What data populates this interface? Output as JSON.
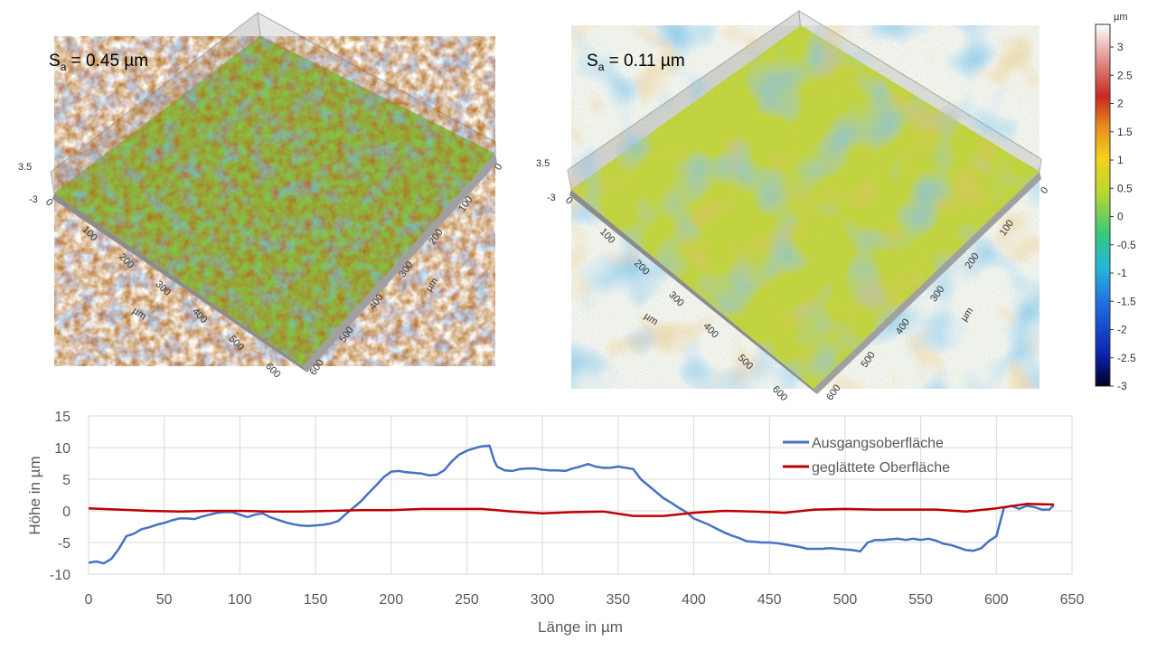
{
  "surfaces": [
    {
      "id": "left",
      "label_main": "S",
      "label_sub": "a",
      "label_value": " = 0.45 µm",
      "z_ticks": [
        "3.5",
        "-3"
      ],
      "x_ticks": [
        "0",
        "100",
        "200",
        "300",
        "400",
        "500",
        "600"
      ],
      "y_ticks": [
        "0",
        "100",
        "200",
        "300",
        "400",
        "500",
        "600"
      ],
      "axis_unit": "µm",
      "texture": "rough"
    },
    {
      "id": "right",
      "label_main": "S",
      "label_sub": "a",
      "label_value": " = 0.11 µm",
      "z_ticks": [
        "3.5",
        "-3"
      ],
      "x_ticks": [
        "0",
        "100",
        "200",
        "300",
        "400",
        "500",
        "600"
      ],
      "y_ticks": [
        "0",
        "100",
        "200",
        "300",
        "400",
        "500",
        "600"
      ],
      "axis_unit": "µm",
      "texture": "smooth"
    }
  ],
  "colorbar": {
    "unit": "µm",
    "ticks": [
      "3",
      "2.5",
      "2",
      "1.5",
      "1",
      "0.5",
      "0",
      "-0.5",
      "-1",
      "-1.5",
      "-2",
      "-2.5",
      "-3"
    ],
    "range": [
      -3,
      3.4
    ],
    "colors": [
      "#000020",
      "#0a1fa8",
      "#1f6ae0",
      "#25b8d9",
      "#35c97c",
      "#b7d633",
      "#f3d21a",
      "#e78a1d",
      "#c7281d",
      "#e0908a",
      "#ffffff"
    ]
  },
  "chart_data": {
    "type": "line",
    "xlabel": "Länge in µm",
    "ylabel": "Höhe in µm",
    "xlim": [
      0,
      650
    ],
    "ylim": [
      -10,
      15
    ],
    "xticks": [
      0,
      50,
      100,
      150,
      200,
      250,
      300,
      350,
      400,
      450,
      500,
      550,
      600,
      650
    ],
    "yticks": [
      -10,
      -5,
      0,
      5,
      10,
      15
    ],
    "legend_position": "top-right",
    "series": [
      {
        "name": "Ausgangsoberfläche",
        "color": "#4472c4",
        "points": [
          [
            0,
            -8.2
          ],
          [
            5,
            -8
          ],
          [
            10,
            -8.3
          ],
          [
            15,
            -7.6
          ],
          [
            20,
            -6
          ],
          [
            25,
            -4
          ],
          [
            30,
            -3.6
          ],
          [
            35,
            -2.9
          ],
          [
            40,
            -2.6
          ],
          [
            45,
            -2.2
          ],
          [
            50,
            -1.9
          ],
          [
            55,
            -1.5
          ],
          [
            60,
            -1.2
          ],
          [
            65,
            -1.2
          ],
          [
            70,
            -1.3
          ],
          [
            75,
            -0.9
          ],
          [
            80,
            -0.6
          ],
          [
            85,
            -0.3
          ],
          [
            90,
            -0.2
          ],
          [
            95,
            -0.2
          ],
          [
            100,
            -0.6
          ],
          [
            105,
            -1
          ],
          [
            110,
            -0.6
          ],
          [
            115,
            -0.4
          ],
          [
            120,
            -1
          ],
          [
            125,
            -1.4
          ],
          [
            130,
            -1.8
          ],
          [
            135,
            -2.1
          ],
          [
            140,
            -2.3
          ],
          [
            145,
            -2.4
          ],
          [
            150,
            -2.3
          ],
          [
            155,
            -2.2
          ],
          [
            160,
            -2
          ],
          [
            165,
            -1.6
          ],
          [
            170,
            -0.5
          ],
          [
            175,
            0.5
          ],
          [
            180,
            1.5
          ],
          [
            185,
            2.8
          ],
          [
            190,
            4
          ],
          [
            195,
            5.3
          ],
          [
            200,
            6.2
          ],
          [
            205,
            6.3
          ],
          [
            210,
            6.1
          ],
          [
            215,
            6
          ],
          [
            220,
            5.9
          ],
          [
            225,
            5.6
          ],
          [
            230,
            5.7
          ],
          [
            235,
            6.4
          ],
          [
            240,
            7.8
          ],
          [
            245,
            8.9
          ],
          [
            250,
            9.5
          ],
          [
            255,
            9.9
          ],
          [
            260,
            10.2
          ],
          [
            265,
            10.3
          ],
          [
            268,
            8
          ],
          [
            270,
            7
          ],
          [
            275,
            6.4
          ],
          [
            280,
            6.3
          ],
          [
            285,
            6.6
          ],
          [
            290,
            6.7
          ],
          [
            295,
            6.7
          ],
          [
            300,
            6.5
          ],
          [
            305,
            6.4
          ],
          [
            310,
            6.4
          ],
          [
            315,
            6.3
          ],
          [
            320,
            6.7
          ],
          [
            325,
            7
          ],
          [
            330,
            7.4
          ],
          [
            335,
            7
          ],
          [
            340,
            6.8
          ],
          [
            345,
            6.8
          ],
          [
            350,
            7
          ],
          [
            355,
            6.8
          ],
          [
            360,
            6.6
          ],
          [
            365,
            5
          ],
          [
            370,
            4
          ],
          [
            375,
            3
          ],
          [
            380,
            2
          ],
          [
            385,
            1.3
          ],
          [
            390,
            0.5
          ],
          [
            395,
            -0.2
          ],
          [
            400,
            -1.2
          ],
          [
            405,
            -1.7
          ],
          [
            410,
            -2.2
          ],
          [
            415,
            -2.8
          ],
          [
            420,
            -3.4
          ],
          [
            425,
            -3.9
          ],
          [
            430,
            -4.3
          ],
          [
            435,
            -4.8
          ],
          [
            440,
            -4.9
          ],
          [
            445,
            -5
          ],
          [
            450,
            -5
          ],
          [
            455,
            -5.1
          ],
          [
            460,
            -5.3
          ],
          [
            465,
            -5.5
          ],
          [
            470,
            -5.7
          ],
          [
            475,
            -6
          ],
          [
            480,
            -6
          ],
          [
            485,
            -6
          ],
          [
            490,
            -5.9
          ],
          [
            495,
            -6
          ],
          [
            500,
            -6.1
          ],
          [
            505,
            -6.2
          ],
          [
            510,
            -6.4
          ],
          [
            515,
            -5
          ],
          [
            520,
            -4.6
          ],
          [
            525,
            -4.6
          ],
          [
            530,
            -4.5
          ],
          [
            535,
            -4.4
          ],
          [
            540,
            -4.6
          ],
          [
            545,
            -4.4
          ],
          [
            550,
            -4.6
          ],
          [
            555,
            -4.4
          ],
          [
            560,
            -4.7
          ],
          [
            565,
            -5.2
          ],
          [
            570,
            -5.4
          ],
          [
            575,
            -5.8
          ],
          [
            580,
            -6.2
          ],
          [
            585,
            -6.3
          ],
          [
            590,
            -5.9
          ],
          [
            595,
            -4.8
          ],
          [
            600,
            -4
          ],
          [
            605,
            0.5
          ],
          [
            610,
            0.8
          ],
          [
            615,
            0.3
          ],
          [
            620,
            0.8
          ],
          [
            625,
            0.6
          ],
          [
            630,
            0.2
          ],
          [
            635,
            0.2
          ],
          [
            638,
            0.9
          ]
        ]
      },
      {
        "name": "geglättete Oberfläche",
        "color": "#c00000",
        "points": [
          [
            0,
            0.4
          ],
          [
            20,
            0.2
          ],
          [
            40,
            0
          ],
          [
            60,
            -0.1
          ],
          [
            80,
            0
          ],
          [
            100,
            0
          ],
          [
            120,
            -0.1
          ],
          [
            140,
            -0.1
          ],
          [
            160,
            0
          ],
          [
            180,
            0.1
          ],
          [
            200,
            0.1
          ],
          [
            220,
            0.3
          ],
          [
            240,
            0.3
          ],
          [
            260,
            0.3
          ],
          [
            280,
            -0.1
          ],
          [
            300,
            -0.4
          ],
          [
            320,
            -0.2
          ],
          [
            340,
            -0.1
          ],
          [
            360,
            -0.8
          ],
          [
            380,
            -0.8
          ],
          [
            400,
            -0.3
          ],
          [
            420,
            0
          ],
          [
            440,
            -0.1
          ],
          [
            460,
            -0.3
          ],
          [
            480,
            0.2
          ],
          [
            500,
            0.3
          ],
          [
            520,
            0.2
          ],
          [
            540,
            0.2
          ],
          [
            560,
            0.2
          ],
          [
            580,
            -0.1
          ],
          [
            600,
            0.4
          ],
          [
            620,
            1.1
          ],
          [
            638,
            1
          ]
        ]
      }
    ]
  }
}
